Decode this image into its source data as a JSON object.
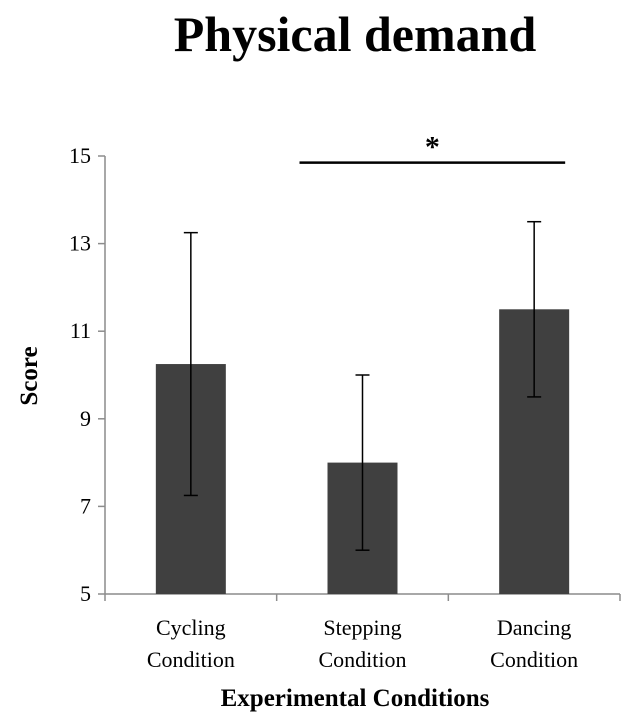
{
  "chart_data": {
    "type": "bar",
    "title": "Physical demand",
    "xlabel": "Experimental Conditions",
    "ylabel": "Score",
    "categories": [
      [
        "Cycling",
        "Condition"
      ],
      [
        "Stepping",
        "Condition"
      ],
      [
        "Dancing",
        "Condition"
      ]
    ],
    "series": [
      {
        "values": [
          10.25,
          8.0,
          11.5
        ],
        "error_low": [
          7.25,
          6.0,
          9.5
        ],
        "error_high": [
          13.25,
          10.0,
          13.5
        ]
      }
    ],
    "ylim": [
      5,
      15
    ],
    "yticks": [
      5,
      7,
      9,
      11,
      13,
      15
    ],
    "yticklabels": [
      "5",
      "7",
      "9",
      "11",
      "13",
      "15"
    ],
    "grid": false,
    "annotations": [
      {
        "text": "*",
        "from": 1,
        "to": 2,
        "y": 14.85
      }
    ],
    "colors": {
      "bar": "#404040",
      "axis": "#8c8c8c",
      "error": "#000000",
      "bracket": "#000000"
    }
  }
}
